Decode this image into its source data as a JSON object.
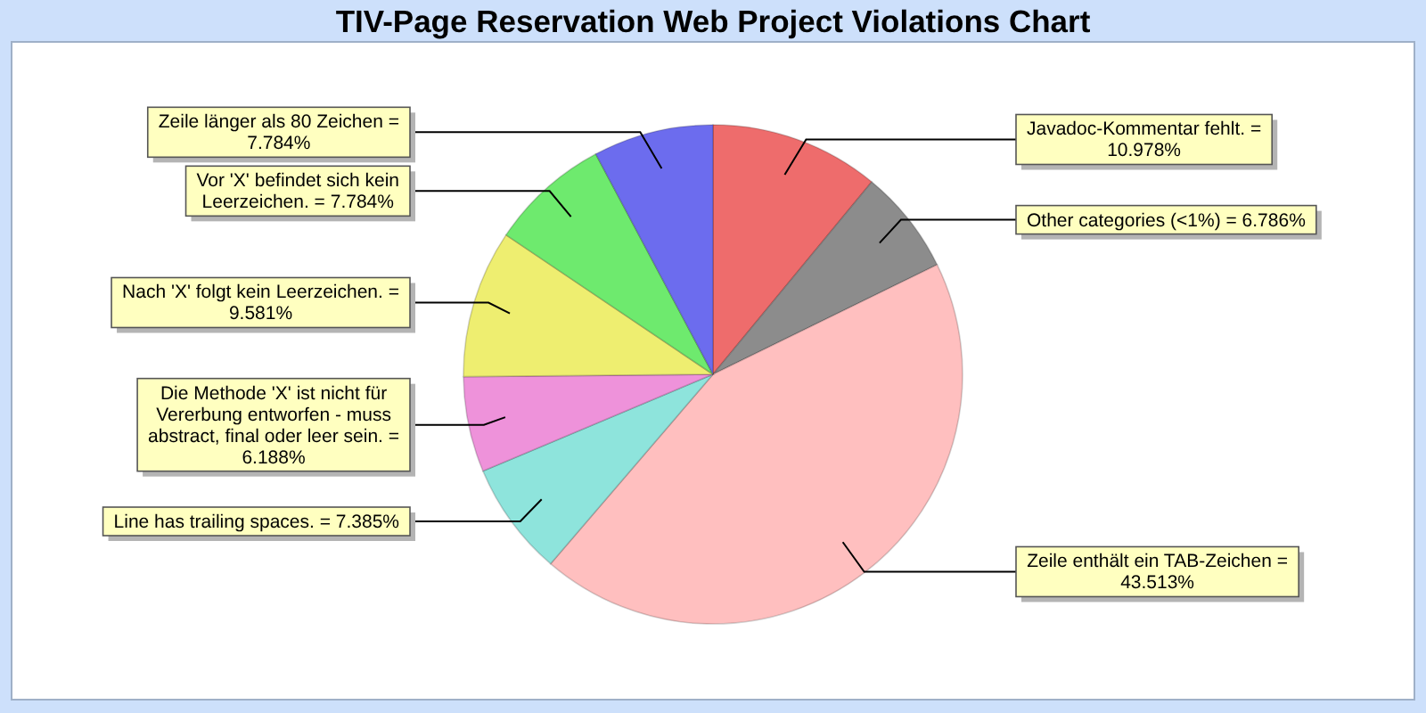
{
  "chart_data": {
    "type": "pie",
    "title": "TIV-Page Reservation Web Project Violations Chart",
    "categories": [
      "Javadoc-Kommentar fehlt.",
      "Other categories (<1%)",
      "Zeile enthält ein TAB-Zeichen",
      "Line has trailing spaces.",
      "Die Methode 'X' ist nicht für Vererbung entworfen - muss abstract, final oder leer sein.",
      "Nach 'X' folgt kein Leerzeichen.",
      "Vor 'X' befindet sich kein Leerzeichen.",
      "Zeile länger als 80 Zeichen"
    ],
    "values": [
      10.978,
      6.786,
      43.513,
      7.385,
      6.188,
      9.581,
      7.784,
      7.784
    ],
    "value_labels": [
      "= 10.978%",
      "= 6.786%",
      "= 43.513%",
      "= 7.385%",
      "= 6.188%",
      "= 9.581%",
      "= 7.784%",
      "= 7.784%"
    ],
    "colors": [
      "#ee6c6c",
      "#8c8c8c",
      "#ffbfbf",
      "#8ee4dc",
      "#ee92da",
      "#eeee70",
      "#6eea6e",
      "#6c6cee"
    ]
  }
}
